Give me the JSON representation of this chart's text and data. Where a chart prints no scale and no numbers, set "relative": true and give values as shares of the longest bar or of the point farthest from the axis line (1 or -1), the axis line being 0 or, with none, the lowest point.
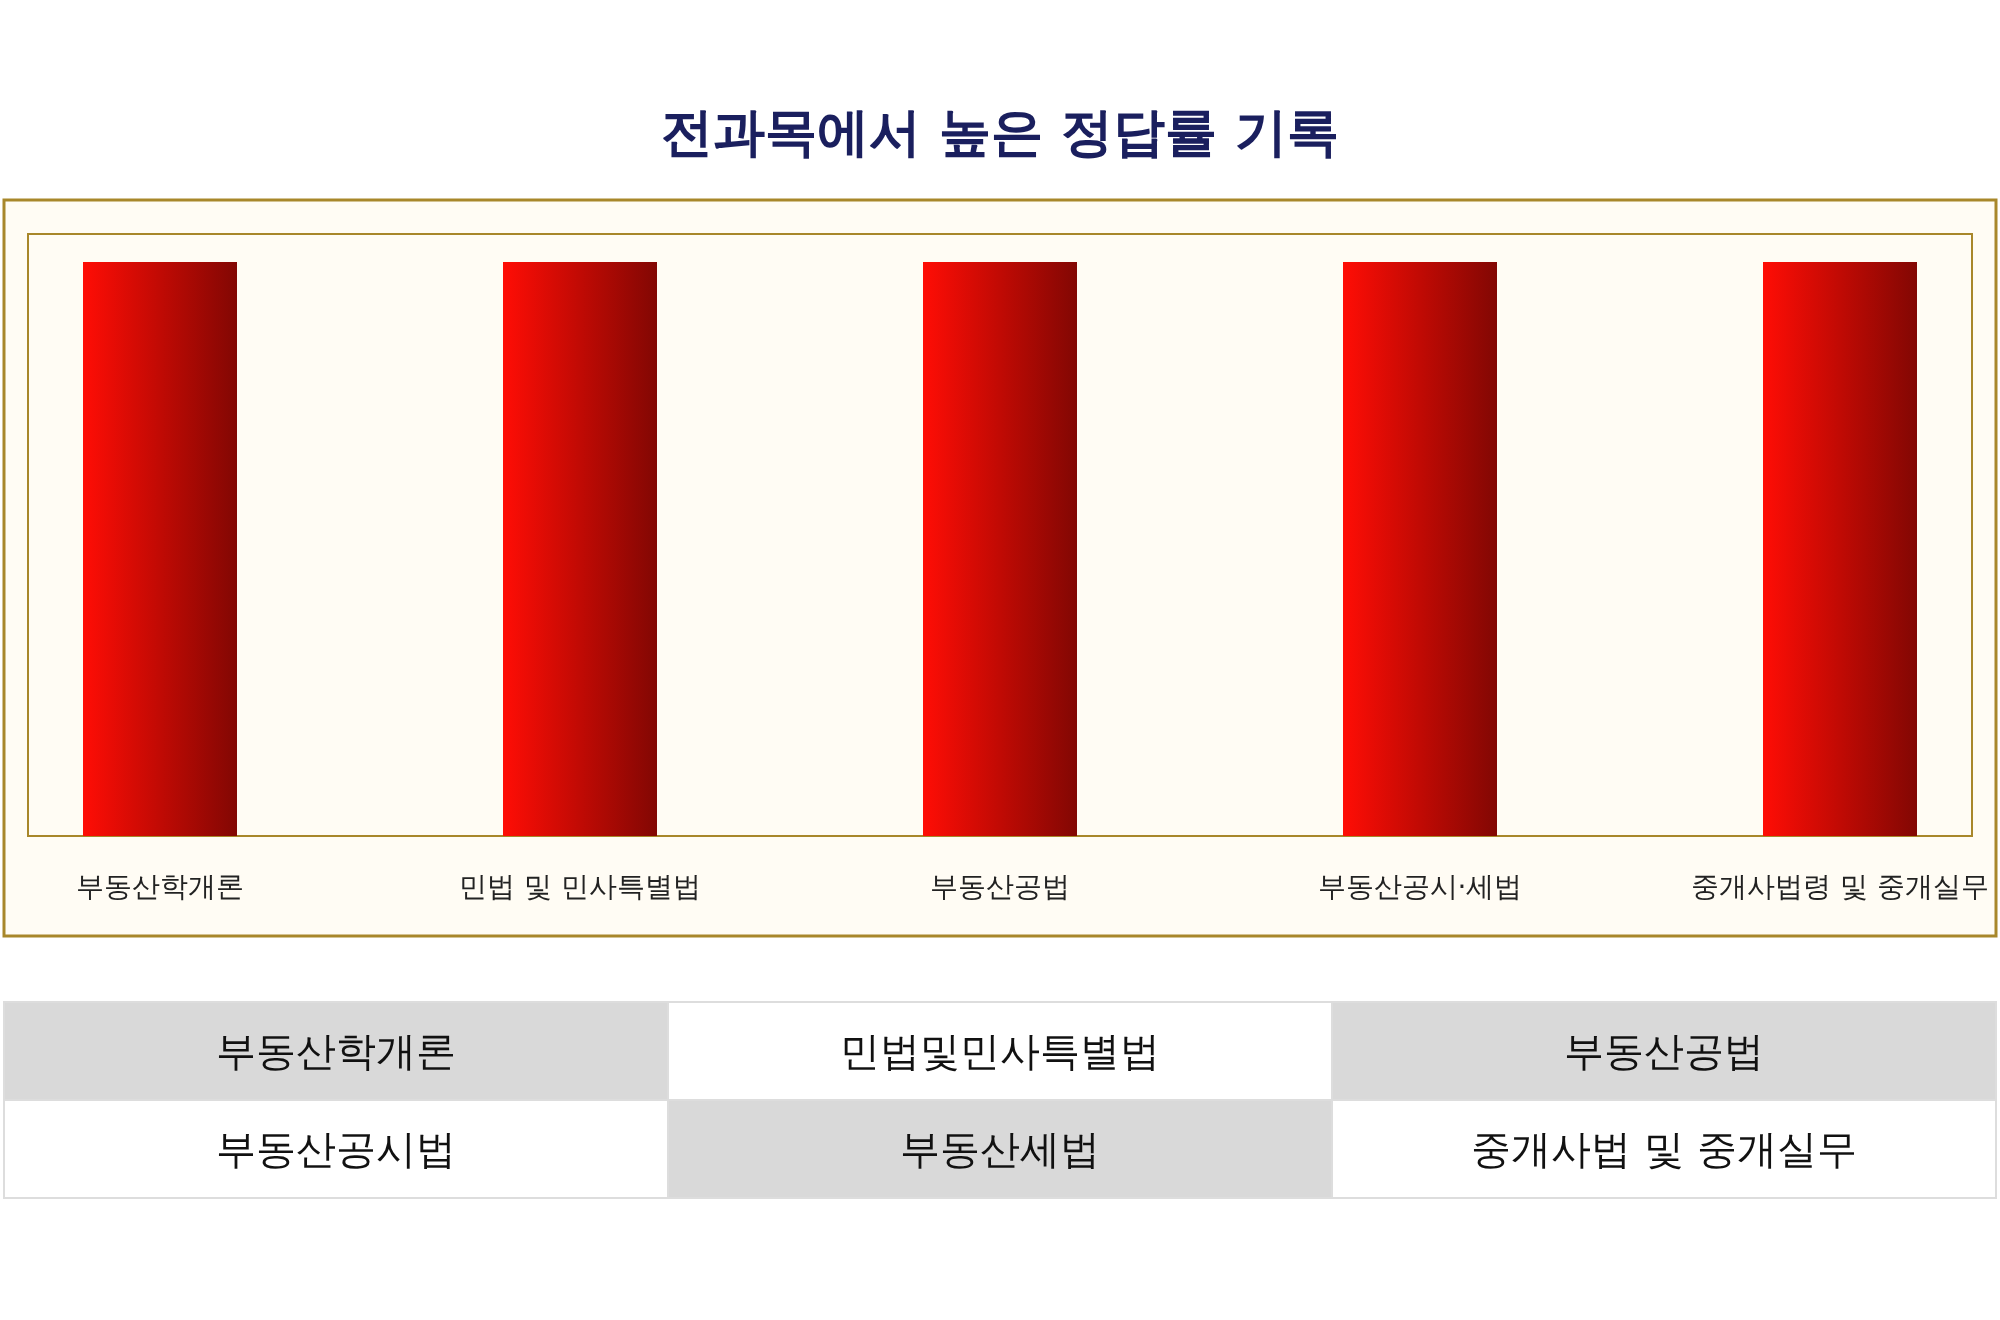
{
  "chart_data": [
    {
      "type": "bar",
      "title": "전과목에서 높은 정답률 기록",
      "relative": true,
      "categories": [
        "부동산학개론",
        "민법 및 민사특별법",
        "부동산공법",
        "부동산공시·세법",
        "중개사법령 및 중개실무"
      ],
      "values": [
        1,
        1,
        1,
        1,
        1
      ],
      "color": "#c80a04"
    },
    {
      "type": "other",
      "annotations": [
        "부동산학개론",
        "민법및민사특별법",
        "부동산공법",
        "부동산공시법",
        "부동산세법",
        "중개사법 및 중개실무"
      ]
    }
  ]
}
